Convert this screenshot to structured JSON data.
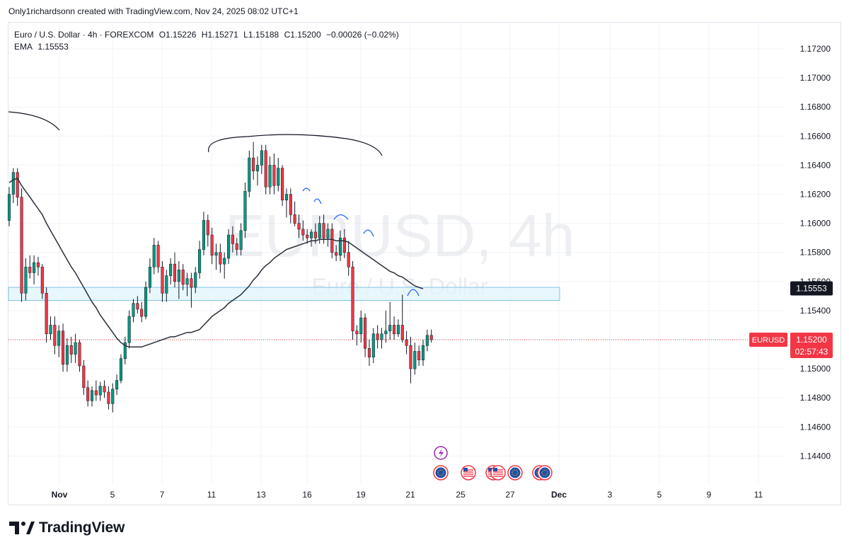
{
  "header": {
    "credit": "Only1richardsonn created with TradingView.com, Nov 24, 2025 08:02 UTC+1"
  },
  "legend": {
    "symbol": "Euro / U.S. Dollar · 4h · FOREXCOM",
    "open": "O1.15226",
    "high": "H1.15271",
    "low": "L1.15188",
    "close": "C1.15200",
    "change": "−0.00026 (−0.02%)",
    "ema_label": "EMA",
    "ema_value": "1.15553"
  },
  "watermark": {
    "main": "EURUSD, 4h",
    "sub": "Euro / U.S. Dollar"
  },
  "price_tags": {
    "ema": "1.15553",
    "symbol": "EURUSD",
    "last": "1.15200",
    "countdown": "02:57:43"
  },
  "brand": {
    "name": "TradingView"
  },
  "colors": {
    "up": "#089981",
    "down": "#f23645",
    "ema": "#2a2e39",
    "zone_fill": "#e0f4fb",
    "zone_border": "#81c3e4",
    "annotation_blue": "#2962ff",
    "event_purple": "#9c27b0"
  },
  "chart_data": {
    "type": "candlestick",
    "y_axis_ticks": [
      "1.17200",
      "1.17000",
      "1.16800",
      "1.16600",
      "1.16400",
      "1.16200",
      "1.16000",
      "1.15800",
      "1.15600",
      "1.15400",
      "1.15200",
      "1.15000",
      "1.14800",
      "1.14600",
      "1.14400"
    ],
    "x_axis_ticks": [
      "Nov",
      "5",
      "7",
      "11",
      "13",
      "16",
      "19",
      "21",
      "25",
      "27",
      "Dec",
      "3",
      "5",
      "9",
      "11"
    ],
    "ylim": [
      1.1425,
      1.174
    ],
    "last_price": 1.152,
    "ema_last": 1.15553,
    "zone": {
      "low": 1.1547,
      "high": 1.1556
    },
    "candles": [
      {
        "o": 1.1602,
        "h": 1.1625,
        "l": 1.1598,
        "c": 1.162
      },
      {
        "o": 1.162,
        "h": 1.1638,
        "l": 1.1614,
        "c": 1.1635
      },
      {
        "o": 1.1635,
        "h": 1.1638,
        "l": 1.1612,
        "c": 1.1618
      },
      {
        "o": 1.1618,
        "h": 1.1624,
        "l": 1.1546,
        "c": 1.1552
      },
      {
        "o": 1.1552,
        "h": 1.1576,
        "l": 1.1547,
        "c": 1.157
      },
      {
        "o": 1.157,
        "h": 1.1578,
        "l": 1.1562,
        "c": 1.1566
      },
      {
        "o": 1.1566,
        "h": 1.1578,
        "l": 1.1558,
        "c": 1.1573
      },
      {
        "o": 1.1573,
        "h": 1.1577,
        "l": 1.1564,
        "c": 1.157
      },
      {
        "o": 1.157,
        "h": 1.1572,
        "l": 1.1548,
        "c": 1.1552
      },
      {
        "o": 1.1552,
        "h": 1.1556,
        "l": 1.1518,
        "c": 1.1524
      },
      {
        "o": 1.1524,
        "h": 1.1536,
        "l": 1.152,
        "c": 1.153
      },
      {
        "o": 1.153,
        "h": 1.1536,
        "l": 1.151,
        "c": 1.1516
      },
      {
        "o": 1.1516,
        "h": 1.153,
        "l": 1.1508,
        "c": 1.1526
      },
      {
        "o": 1.1526,
        "h": 1.1531,
        "l": 1.1498,
        "c": 1.1503
      },
      {
        "o": 1.1503,
        "h": 1.1521,
        "l": 1.1498,
        "c": 1.1516
      },
      {
        "o": 1.1516,
        "h": 1.1522,
        "l": 1.1504,
        "c": 1.151
      },
      {
        "o": 1.151,
        "h": 1.1524,
        "l": 1.1504,
        "c": 1.1518
      },
      {
        "o": 1.1518,
        "h": 1.152,
        "l": 1.1498,
        "c": 1.1502
      },
      {
        "o": 1.1502,
        "h": 1.1506,
        "l": 1.1482,
        "c": 1.1487
      },
      {
        "o": 1.1487,
        "h": 1.1492,
        "l": 1.1474,
        "c": 1.1478
      },
      {
        "o": 1.1478,
        "h": 1.1488,
        "l": 1.1474,
        "c": 1.1485
      },
      {
        "o": 1.1485,
        "h": 1.1492,
        "l": 1.1478,
        "c": 1.1482
      },
      {
        "o": 1.1482,
        "h": 1.1491,
        "l": 1.1478,
        "c": 1.1488
      },
      {
        "o": 1.1488,
        "h": 1.1492,
        "l": 1.148,
        "c": 1.1484
      },
      {
        "o": 1.1484,
        "h": 1.1488,
        "l": 1.1472,
        "c": 1.1476
      },
      {
        "o": 1.1476,
        "h": 1.149,
        "l": 1.147,
        "c": 1.1486
      },
      {
        "o": 1.1486,
        "h": 1.1496,
        "l": 1.1482,
        "c": 1.1492
      },
      {
        "o": 1.1492,
        "h": 1.151,
        "l": 1.149,
        "c": 1.1507
      },
      {
        "o": 1.1507,
        "h": 1.1522,
        "l": 1.1503,
        "c": 1.1518
      },
      {
        "o": 1.1518,
        "h": 1.154,
        "l": 1.1514,
        "c": 1.1536
      },
      {
        "o": 1.1536,
        "h": 1.1548,
        "l": 1.1532,
        "c": 1.1545
      },
      {
        "o": 1.1545,
        "h": 1.155,
        "l": 1.1538,
        "c": 1.1541
      },
      {
        "o": 1.1541,
        "h": 1.1546,
        "l": 1.1532,
        "c": 1.1536
      },
      {
        "o": 1.1536,
        "h": 1.156,
        "l": 1.1534,
        "c": 1.1556
      },
      {
        "o": 1.1556,
        "h": 1.1576,
        "l": 1.1552,
        "c": 1.157
      },
      {
        "o": 1.157,
        "h": 1.159,
        "l": 1.1565,
        "c": 1.1585
      },
      {
        "o": 1.1585,
        "h": 1.1588,
        "l": 1.1566,
        "c": 1.157
      },
      {
        "o": 1.157,
        "h": 1.1574,
        "l": 1.1546,
        "c": 1.1552
      },
      {
        "o": 1.1552,
        "h": 1.1568,
        "l": 1.1546,
        "c": 1.1564
      },
      {
        "o": 1.1564,
        "h": 1.1576,
        "l": 1.1558,
        "c": 1.1572
      },
      {
        "o": 1.1572,
        "h": 1.158,
        "l": 1.1556,
        "c": 1.156
      },
      {
        "o": 1.156,
        "h": 1.1574,
        "l": 1.1548,
        "c": 1.1568
      },
      {
        "o": 1.1568,
        "h": 1.1572,
        "l": 1.1554,
        "c": 1.1558
      },
      {
        "o": 1.1558,
        "h": 1.1566,
        "l": 1.155,
        "c": 1.1562
      },
      {
        "o": 1.1562,
        "h": 1.1566,
        "l": 1.1542,
        "c": 1.1556
      },
      {
        "o": 1.1556,
        "h": 1.157,
        "l": 1.1552,
        "c": 1.1566
      },
      {
        "o": 1.1566,
        "h": 1.1588,
        "l": 1.1562,
        "c": 1.1582
      },
      {
        "o": 1.1582,
        "h": 1.1608,
        "l": 1.1578,
        "c": 1.1602
      },
      {
        "o": 1.1602,
        "h": 1.1606,
        "l": 1.1584,
        "c": 1.1592
      },
      {
        "o": 1.1592,
        "h": 1.1597,
        "l": 1.1572,
        "c": 1.1578
      },
      {
        "o": 1.1578,
        "h": 1.1586,
        "l": 1.1568,
        "c": 1.158
      },
      {
        "o": 1.158,
        "h": 1.1586,
        "l": 1.1566,
        "c": 1.1572
      },
      {
        "o": 1.1572,
        "h": 1.158,
        "l": 1.1562,
        "c": 1.1576
      },
      {
        "o": 1.1576,
        "h": 1.1596,
        "l": 1.1572,
        "c": 1.1592
      },
      {
        "o": 1.1592,
        "h": 1.1598,
        "l": 1.158,
        "c": 1.1586
      },
      {
        "o": 1.1586,
        "h": 1.159,
        "l": 1.1578,
        "c": 1.1582
      },
      {
        "o": 1.1582,
        "h": 1.16,
        "l": 1.1578,
        "c": 1.1595
      },
      {
        "o": 1.1595,
        "h": 1.1628,
        "l": 1.159,
        "c": 1.1622
      },
      {
        "o": 1.1622,
        "h": 1.165,
        "l": 1.1618,
        "c": 1.1645
      },
      {
        "o": 1.1645,
        "h": 1.1656,
        "l": 1.163,
        "c": 1.1636
      },
      {
        "o": 1.1636,
        "h": 1.1646,
        "l": 1.1626,
        "c": 1.164
      },
      {
        "o": 1.164,
        "h": 1.1654,
        "l": 1.1634,
        "c": 1.165
      },
      {
        "o": 1.165,
        "h": 1.1654,
        "l": 1.162,
        "c": 1.1625
      },
      {
        "o": 1.1625,
        "h": 1.1646,
        "l": 1.162,
        "c": 1.164
      },
      {
        "o": 1.164,
        "h": 1.1648,
        "l": 1.162,
        "c": 1.1626
      },
      {
        "o": 1.1626,
        "h": 1.1645,
        "l": 1.1622,
        "c": 1.1638
      },
      {
        "o": 1.1638,
        "h": 1.164,
        "l": 1.1612,
        "c": 1.1616
      },
      {
        "o": 1.1616,
        "h": 1.1624,
        "l": 1.1604,
        "c": 1.162
      },
      {
        "o": 1.162,
        "h": 1.1624,
        "l": 1.16,
        "c": 1.1606
      },
      {
        "o": 1.1606,
        "h": 1.1615,
        "l": 1.1598,
        "c": 1.16
      },
      {
        "o": 1.16,
        "h": 1.1606,
        "l": 1.159,
        "c": 1.1596
      },
      {
        "o": 1.1596,
        "h": 1.1602,
        "l": 1.1588,
        "c": 1.1592
      },
      {
        "o": 1.1592,
        "h": 1.1596,
        "l": 1.1586,
        "c": 1.159
      },
      {
        "o": 1.159,
        "h": 1.1596,
        "l": 1.1584,
        "c": 1.1594
      },
      {
        "o": 1.1594,
        "h": 1.16,
        "l": 1.1586,
        "c": 1.159
      },
      {
        "o": 1.159,
        "h": 1.1605,
        "l": 1.1586,
        "c": 1.16
      },
      {
        "o": 1.16,
        "h": 1.1606,
        "l": 1.1586,
        "c": 1.159
      },
      {
        "o": 1.159,
        "h": 1.16,
        "l": 1.1584,
        "c": 1.1596
      },
      {
        "o": 1.1596,
        "h": 1.16,
        "l": 1.1576,
        "c": 1.158
      },
      {
        "o": 1.158,
        "h": 1.1585,
        "l": 1.1574,
        "c": 1.1578
      },
      {
        "o": 1.1578,
        "h": 1.1595,
        "l": 1.1574,
        "c": 1.159
      },
      {
        "o": 1.159,
        "h": 1.1596,
        "l": 1.1576,
        "c": 1.158
      },
      {
        "o": 1.158,
        "h": 1.1588,
        "l": 1.1564,
        "c": 1.157
      },
      {
        "o": 1.157,
        "h": 1.1574,
        "l": 1.152,
        "c": 1.1526
      },
      {
        "o": 1.1526,
        "h": 1.153,
        "l": 1.1516,
        "c": 1.1524
      },
      {
        "o": 1.1524,
        "h": 1.154,
        "l": 1.1518,
        "c": 1.1535
      },
      {
        "o": 1.1535,
        "h": 1.1538,
        "l": 1.1508,
        "c": 1.1514
      },
      {
        "o": 1.1514,
        "h": 1.152,
        "l": 1.1502,
        "c": 1.1508
      },
      {
        "o": 1.1508,
        "h": 1.1528,
        "l": 1.1504,
        "c": 1.1524
      },
      {
        "o": 1.1524,
        "h": 1.153,
        "l": 1.1514,
        "c": 1.152
      },
      {
        "o": 1.152,
        "h": 1.1528,
        "l": 1.1514,
        "c": 1.1524
      },
      {
        "o": 1.1524,
        "h": 1.154,
        "l": 1.1518,
        "c": 1.1526
      },
      {
        "o": 1.1526,
        "h": 1.1546,
        "l": 1.152,
        "c": 1.153
      },
      {
        "o": 1.153,
        "h": 1.1536,
        "l": 1.152,
        "c": 1.1524
      },
      {
        "o": 1.1524,
        "h": 1.1534,
        "l": 1.1522,
        "c": 1.153
      },
      {
        "o": 1.153,
        "h": 1.1551,
        "l": 1.1518,
        "c": 1.152
      },
      {
        "o": 1.152,
        "h": 1.1526,
        "l": 1.151,
        "c": 1.1516
      },
      {
        "o": 1.1516,
        "h": 1.1522,
        "l": 1.149,
        "c": 1.15
      },
      {
        "o": 1.15,
        "h": 1.1518,
        "l": 1.1496,
        "c": 1.1512
      },
      {
        "o": 1.1512,
        "h": 1.1516,
        "l": 1.1502,
        "c": 1.1506
      },
      {
        "o": 1.1506,
        "h": 1.152,
        "l": 1.1502,
        "c": 1.1516
      },
      {
        "o": 1.1516,
        "h": 1.1527,
        "l": 1.1512,
        "c": 1.1523
      },
      {
        "o": 1.1523,
        "h": 1.1527,
        "l": 1.1518,
        "c": 1.152
      }
    ],
    "ema": [
      1.1628,
      1.163,
      1.1631,
      1.1626,
      1.1622,
      1.1618,
      1.1614,
      1.161,
      1.1606,
      1.16,
      1.1595,
      1.159,
      1.1585,
      1.158,
      1.1575,
      1.157,
      1.1566,
      1.1561,
      1.1556,
      1.1551,
      1.1546,
      1.1542,
      1.1537,
      1.1533,
      1.1529,
      1.1525,
      1.1521,
      1.1518,
      1.1516,
      1.1515,
      1.1515,
      1.1515,
      1.1515,
      1.1516,
      1.1517,
      1.1518,
      1.1519,
      1.152,
      1.1521,
      1.1522,
      1.1522,
      1.1523,
      1.1524,
      1.1525,
      1.1525,
      1.1526,
      1.1527,
      1.153,
      1.1533,
      1.1536,
      1.1538,
      1.154,
      1.1542,
      1.1545,
      1.1547,
      1.1549,
      1.1551,
      1.1554,
      1.1557,
      1.1561,
      1.1564,
      1.1568,
      1.1571,
      1.1573,
      1.1576,
      1.1578,
      1.158,
      1.1582,
      1.1583,
      1.1584,
      1.1585,
      1.1586,
      1.1587,
      1.1588,
      1.1588,
      1.1589,
      1.1589,
      1.1589,
      1.1589,
      1.1588,
      1.1588,
      1.1588,
      1.1587,
      1.1585,
      1.1583,
      1.1581,
      1.1579,
      1.1577,
      1.1575,
      1.1573,
      1.1571,
      1.1569,
      1.1567,
      1.1566,
      1.1564,
      1.1563,
      1.1561,
      1.1559,
      1.1557,
      1.1556,
      1.1555
    ],
    "x_dates": [
      "Nov 1",
      "Nov 5",
      "Nov 7",
      "Nov 11",
      "Nov 13",
      "Nov 16",
      "Nov 19",
      "Nov 21",
      "Nov 25",
      "Nov 27",
      "Dec 1",
      "Dec 3",
      "Dec 5",
      "Dec 9",
      "Dec 11"
    ]
  }
}
